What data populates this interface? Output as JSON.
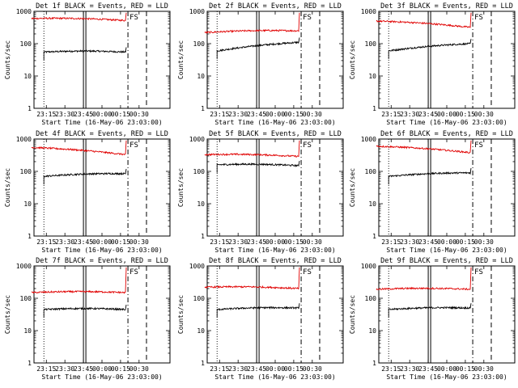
{
  "chart_data": [
    {
      "type": "line",
      "title": "Det 1f BLACK = Events, RED = LLD",
      "xlabel": "Start Time (16-May-06 23:03:00)",
      "ylabel": "Counts/sec",
      "ylim": [
        1,
        1000
      ],
      "yscale": "log",
      "yticks": [
        "1",
        "10",
        "100",
        "1000"
      ],
      "xticks": [
        "23:15",
        "23:30",
        "23:45",
        "00:00",
        "00:15",
        "00:30"
      ],
      "marker": "FS",
      "series": [
        {
          "name": "Events",
          "color": "#000000",
          "level_start": 55,
          "level_end": 55,
          "x_start": "23:13",
          "x_end": "00:19"
        },
        {
          "name": "LLD",
          "color": "#e00000",
          "level_start": 600,
          "level_end": 520,
          "x_start": "23:03",
          "x_end": "00:19"
        }
      ]
    },
    {
      "type": "line",
      "title": "Det 2f BLACK = Events, RED = LLD",
      "xlabel": "Start Time (16-May-06 23:03:00)",
      "ylabel": "Counts/sec",
      "ylim": [
        1,
        1000
      ],
      "yscale": "log",
      "yticks": [
        "1",
        "10",
        "100",
        "1000"
      ],
      "xticks": [
        "23:15",
        "23:30",
        "23:45",
        "00:00",
        "00:15",
        "00:30"
      ],
      "marker": "FS",
      "series": [
        {
          "name": "Events",
          "color": "#000000",
          "level_start": 60,
          "level_end": 110,
          "x_start": "23:13",
          "x_end": "00:19"
        },
        {
          "name": "LLD",
          "color": "#e00000",
          "level_start": 220,
          "level_end": 250,
          "x_start": "23:03",
          "x_end": "00:19"
        }
      ]
    },
    {
      "type": "line",
      "title": "Det 3f BLACK = Events, RED = LLD",
      "xlabel": "Start Time (16-May-06 23:03:00)",
      "ylabel": "Counts/sec",
      "ylim": [
        1,
        1000
      ],
      "yscale": "log",
      "yticks": [
        "1",
        "10",
        "100",
        "1000"
      ],
      "xticks": [
        "23:15",
        "23:30",
        "23:45",
        "00:00",
        "00:15",
        "00:30"
      ],
      "marker": "FS",
      "series": [
        {
          "name": "Events",
          "color": "#000000",
          "level_start": 60,
          "level_end": 100,
          "x_start": "23:13",
          "x_end": "00:19"
        },
        {
          "name": "LLD",
          "color": "#e00000",
          "level_start": 500,
          "level_end": 320,
          "x_start": "23:03",
          "x_end": "00:19"
        }
      ]
    },
    {
      "type": "line",
      "title": "Det 4f BLACK = Events, RED = LLD",
      "xlabel": "Start Time (16-May-06 23:03:00)",
      "ylabel": "Counts/sec",
      "ylim": [
        1,
        1000
      ],
      "yscale": "log",
      "yticks": [
        "1",
        "10",
        "100",
        "1000"
      ],
      "xticks": [
        "23:15",
        "23:30",
        "23:45",
        "00:00",
        "00:15",
        "00:30"
      ],
      "marker": "FS",
      "series": [
        {
          "name": "Events",
          "color": "#000000",
          "level_start": 70,
          "level_end": 85,
          "x_start": "23:13",
          "x_end": "00:19"
        },
        {
          "name": "LLD",
          "color": "#e00000",
          "level_start": 550,
          "level_end": 330,
          "x_start": "23:03",
          "x_end": "00:19"
        }
      ]
    },
    {
      "type": "line",
      "title": "Det 5f BLACK = Events, RED = LLD",
      "xlabel": "Start Time (16-May-06 23:03:00)",
      "ylabel": "Counts/sec",
      "ylim": [
        1,
        1000
      ],
      "yscale": "log",
      "yticks": [
        "1",
        "10",
        "100",
        "1000"
      ],
      "xticks": [
        "23:15",
        "23:30",
        "23:45",
        "00:00",
        "00:15",
        "00:30"
      ],
      "marker": "FS",
      "series": [
        {
          "name": "Events",
          "color": "#000000",
          "level_start": 160,
          "level_end": 150,
          "x_start": "23:13",
          "x_end": "00:19"
        },
        {
          "name": "LLD",
          "color": "#e00000",
          "level_start": 330,
          "level_end": 290,
          "x_start": "23:03",
          "x_end": "00:19"
        }
      ]
    },
    {
      "type": "line",
      "title": "Det 6f BLACK = Events, RED = LLD",
      "xlabel": "Start Time (16-May-06 23:03:00)",
      "ylabel": "Counts/sec",
      "ylim": [
        1,
        1000
      ],
      "yscale": "log",
      "yticks": [
        "1",
        "10",
        "100",
        "1000"
      ],
      "xticks": [
        "23:15",
        "23:30",
        "23:45",
        "00:00",
        "00:15",
        "00:30"
      ],
      "marker": "FS",
      "series": [
        {
          "name": "Events",
          "color": "#000000",
          "level_start": 70,
          "level_end": 90,
          "x_start": "23:13",
          "x_end": "00:19"
        },
        {
          "name": "LLD",
          "color": "#e00000",
          "level_start": 600,
          "level_end": 380,
          "x_start": "23:03",
          "x_end": "00:19"
        }
      ]
    },
    {
      "type": "line",
      "title": "Det 7f BLACK = Events, RED = LLD",
      "xlabel": "Start Time (16-May-06 23:03:00)",
      "ylabel": "Counts/sec",
      "ylim": [
        1,
        1000
      ],
      "yscale": "log",
      "yticks": [
        "1",
        "10",
        "100",
        "1000"
      ],
      "xticks": [
        "23:15",
        "23:30",
        "23:45",
        "00:00",
        "00:15",
        "00:30"
      ],
      "marker": "FS",
      "series": [
        {
          "name": "Events",
          "color": "#000000",
          "level_start": 45,
          "level_end": 45,
          "x_start": "23:13",
          "x_end": "00:19"
        },
        {
          "name": "LLD",
          "color": "#e00000",
          "level_start": 150,
          "level_end": 150,
          "x_start": "23:03",
          "x_end": "00:19"
        }
      ]
    },
    {
      "type": "line",
      "title": "Det 8f BLACK = Events, RED = LLD",
      "xlabel": "Start Time (16-May-06 23:03:00)",
      "ylabel": "Counts/sec",
      "ylim": [
        1,
        1000
      ],
      "yscale": "log",
      "yticks": [
        "1",
        "10",
        "100",
        "1000"
      ],
      "xticks": [
        "23:15",
        "23:30",
        "23:45",
        "00:00",
        "00:15",
        "00:30"
      ],
      "marker": "FS",
      "series": [
        {
          "name": "Events",
          "color": "#000000",
          "level_start": 45,
          "level_end": 50,
          "x_start": "23:13",
          "x_end": "00:19"
        },
        {
          "name": "LLD",
          "color": "#e00000",
          "level_start": 220,
          "level_end": 200,
          "x_start": "23:03",
          "x_end": "00:19"
        }
      ]
    },
    {
      "type": "line",
      "title": "Det 9f BLACK = Events, RED = LLD",
      "xlabel": "Start Time (16-May-06 23:03:00)",
      "ylabel": "Counts/sec",
      "ylim": [
        1,
        1000
      ],
      "yscale": "log",
      "yticks": [
        "1",
        "10",
        "100",
        "1000"
      ],
      "xticks": [
        "23:15",
        "23:30",
        "23:45",
        "00:00",
        "00:15",
        "00:30"
      ],
      "marker": "FS",
      "series": [
        {
          "name": "Events",
          "color": "#000000",
          "level_start": 45,
          "level_end": 50,
          "x_start": "23:13",
          "x_end": "00:19"
        },
        {
          "name": "LLD",
          "color": "#e00000",
          "level_start": 190,
          "level_end": 190,
          "x_start": "23:03",
          "x_end": "00:19"
        }
      ]
    }
  ]
}
